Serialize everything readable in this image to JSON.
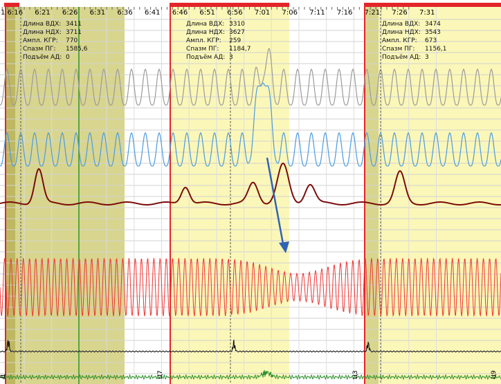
{
  "time_axis": {
    "ticks": [
      "6:16",
      "6:21",
      "6:26",
      "6:31",
      "6:36",
      "6:41",
      "6:46",
      "6:51",
      "6:56",
      "7:01",
      "7:06",
      "7:11",
      "7:16",
      "7:21",
      "7:26",
      "7:31"
    ],
    "left_edge_label": "1"
  },
  "colors": {
    "highlight_yellow": "#fbf7b8",
    "highlight_olive": "#d8d58e",
    "marker_red": "#e3252a",
    "marker_green": "#2f8e1e",
    "trace_gray": "#9b9b9b",
    "trace_blue": "#4a9be0",
    "trace_darkred": "#7b0b0b",
    "trace_red": "#f03232",
    "trace_black": "#111111",
    "trace_green": "#2d8f2d",
    "arrow_blue": "#2f63b5"
  },
  "info_labels": [
    "Длина ВДХ:",
    "Длина НДХ:",
    "Ампл. КГР:",
    "Спазм ПГ:",
    "Подъём АД:"
  ],
  "episodes": [
    {
      "values": [
        "3411",
        "3711",
        "770",
        "1585,6",
        "0"
      ]
    },
    {
      "values": [
        "3310",
        "3627",
        "259",
        "1184,7",
        "3"
      ]
    },
    {
      "values": [
        "3474",
        "3543",
        "673",
        "1156,1",
        "3"
      ]
    }
  ],
  "bottom_markers": [
    "Ц7",
    "Ц3",
    "Ц9"
  ],
  "bottom_left_label": "Д",
  "icons": {
    "arrow": "arrow-down-right-icon"
  }
}
